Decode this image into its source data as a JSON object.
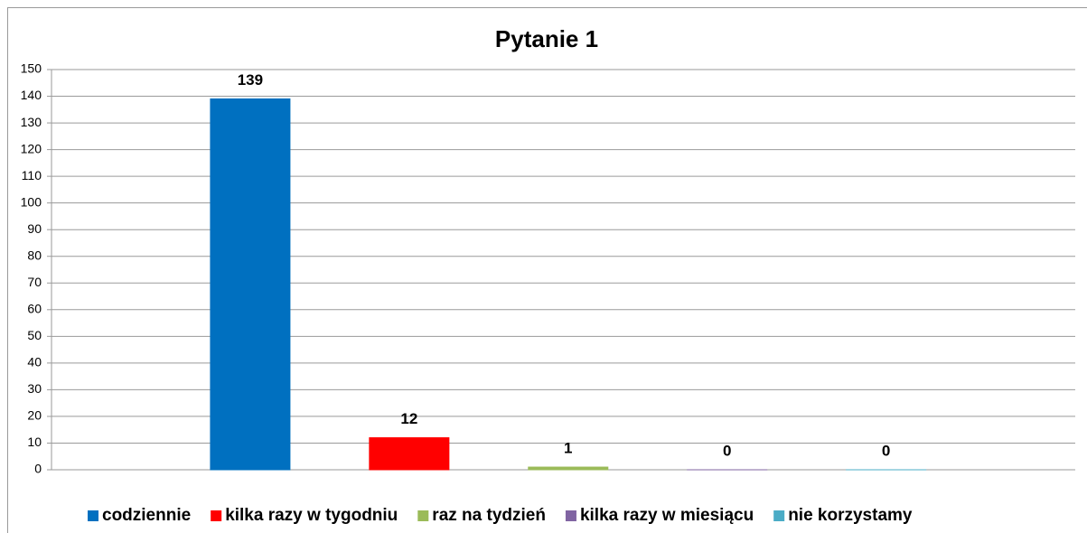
{
  "chart_data": {
    "type": "bar",
    "title": "Pytanie 1",
    "categories": [
      null
    ],
    "series": [
      {
        "name": "codziennie",
        "color": "#0070c0",
        "values": [
          139
        ]
      },
      {
        "name": "kilka razy w tygodniu",
        "color": "#ff0000",
        "values": [
          12
        ]
      },
      {
        "name": "raz na tydzień",
        "color": "#9bbb59",
        "values": [
          1
        ]
      },
      {
        "name": "kilka razy w miesiącu",
        "color": "#8064a2",
        "values": [
          0
        ]
      },
      {
        "name": "nie korzystamy",
        "color": "#4bacc6",
        "values": [
          0
        ]
      }
    ],
    "ylim": [
      0,
      150
    ],
    "yticks": [
      0,
      10,
      20,
      30,
      40,
      50,
      60,
      70,
      80,
      90,
      100,
      110,
      120,
      130,
      140,
      150
    ],
    "grid": true,
    "legend": "bottom"
  }
}
